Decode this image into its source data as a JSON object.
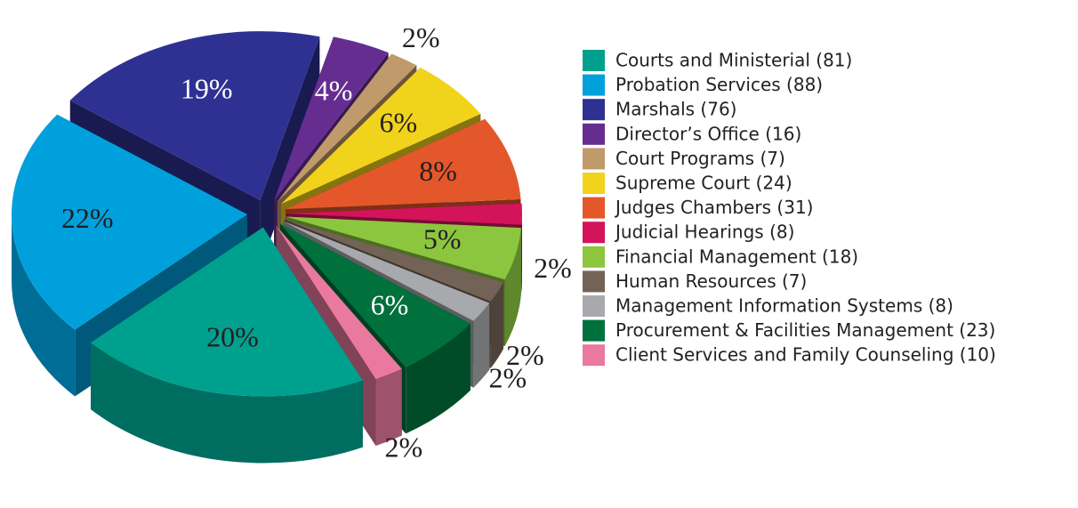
{
  "chart_data": {
    "type": "pie",
    "categories": [
      "Courts and Ministerial (81)",
      "Probation Services (88)",
      "Marshals (76)",
      "Director’s Office (16)",
      "Court Programs (7)",
      "Supreme Court (24)",
      "Judges Chambers (31)",
      "Judicial Hearings (8)",
      "Financial Management (18)",
      "Human Resources (7)",
      "Management Information Systems (8)",
      "Procurement & Facilities Management (23)",
      "Client Services and Family Counseling  (10)"
    ],
    "values": [
      20,
      22,
      19,
      4,
      2,
      6,
      8,
      2,
      5,
      2,
      2,
      6,
      2
    ],
    "value_labels": [
      "20%",
      "22%",
      "19%",
      "4%",
      "2%",
      "6%",
      "8%",
      "2%",
      "5%",
      "2%",
      "2%",
      "6%",
      "2%"
    ],
    "colors": [
      "#00a08f",
      "#00a0dd",
      "#2e3192",
      "#662d91",
      "#c19a6b",
      "#f2d31b",
      "#e4572a",
      "#d4145a",
      "#8cc63f",
      "#736357",
      "#a7a9ac",
      "#00703c",
      "#e9799f"
    ]
  }
}
